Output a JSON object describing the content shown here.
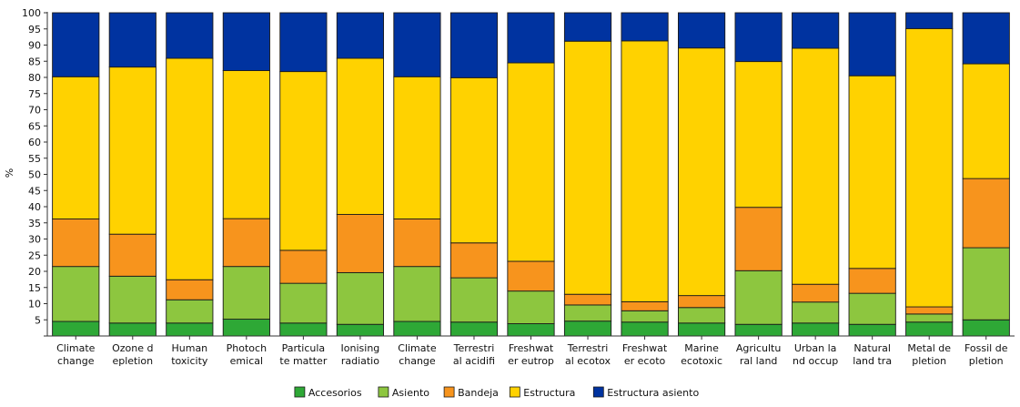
{
  "chart_data": {
    "type": "bar",
    "stacked": true,
    "ylabel": "%",
    "ylim": [
      0,
      100
    ],
    "yticks": [
      5,
      10,
      15,
      20,
      25,
      30,
      35,
      40,
      45,
      50,
      55,
      60,
      65,
      70,
      75,
      80,
      85,
      90,
      95,
      100
    ],
    "grid": false,
    "legend_position": "bottom",
    "categories": [
      [
        "Climate",
        "change"
      ],
      [
        "Ozone d",
        "epletion"
      ],
      [
        "Human",
        "toxicity"
      ],
      [
        "Photoch",
        "emical"
      ],
      [
        "Particula",
        "te matter"
      ],
      [
        "Ionising",
        "radiatio"
      ],
      [
        "Climate",
        "change"
      ],
      [
        "Terrestri",
        "al acidifi"
      ],
      [
        "Freshwat",
        "er eutrop"
      ],
      [
        "Terrestri",
        "al ecotox"
      ],
      [
        "Freshwat",
        "er ecoto"
      ],
      [
        "Marine",
        "ecotoxic"
      ],
      [
        "Agricultu",
        "ral land"
      ],
      [
        "Urban la",
        "nd occup"
      ],
      [
        "Natural",
        "land tra"
      ],
      [
        "Metal de",
        "pletion"
      ],
      [
        "Fossil de",
        "pletion"
      ]
    ],
    "series": [
      {
        "name": "Accesorios",
        "color": "#2ea836",
        "values": [
          4.5,
          4,
          4,
          5.2,
          4,
          3.6,
          4.5,
          4.3,
          3.8,
          4.6,
          4.3,
          4,
          3.6,
          4,
          3.6,
          4.3,
          5
        ]
      },
      {
        "name": "Asiento",
        "color": "#8dc63f",
        "values": [
          17,
          14.5,
          7.2,
          16.3,
          12.3,
          16,
          17,
          13.7,
          10.1,
          5,
          3.5,
          4.8,
          16.6,
          6.5,
          9.6,
          2.5,
          22.3
        ]
      },
      {
        "name": "Bandeja",
        "color": "#f7941d",
        "values": [
          14.7,
          13,
          6.2,
          14.8,
          10.2,
          18,
          14.7,
          10.8,
          9.2,
          3.3,
          2.8,
          3.7,
          19.6,
          5.5,
          7.7,
          2.2,
          21.4
        ]
      },
      {
        "name": "Estructura",
        "color": "#ffd200",
        "values": [
          44,
          51.7,
          68.5,
          45.8,
          55.3,
          48.3,
          44,
          51.1,
          61.4,
          78.3,
          80.7,
          76.6,
          45.1,
          73,
          59.6,
          86.1,
          35.5
        ]
      },
      {
        "name": "Estructura asiento",
        "color": "#0033a0",
        "values": [
          19.8,
          16.8,
          14.1,
          17.9,
          18.2,
          14.1,
          19.8,
          20.1,
          15.5,
          8.8,
          8.7,
          10.9,
          15.1,
          11,
          19.5,
          4.9,
          15.8
        ]
      }
    ]
  }
}
